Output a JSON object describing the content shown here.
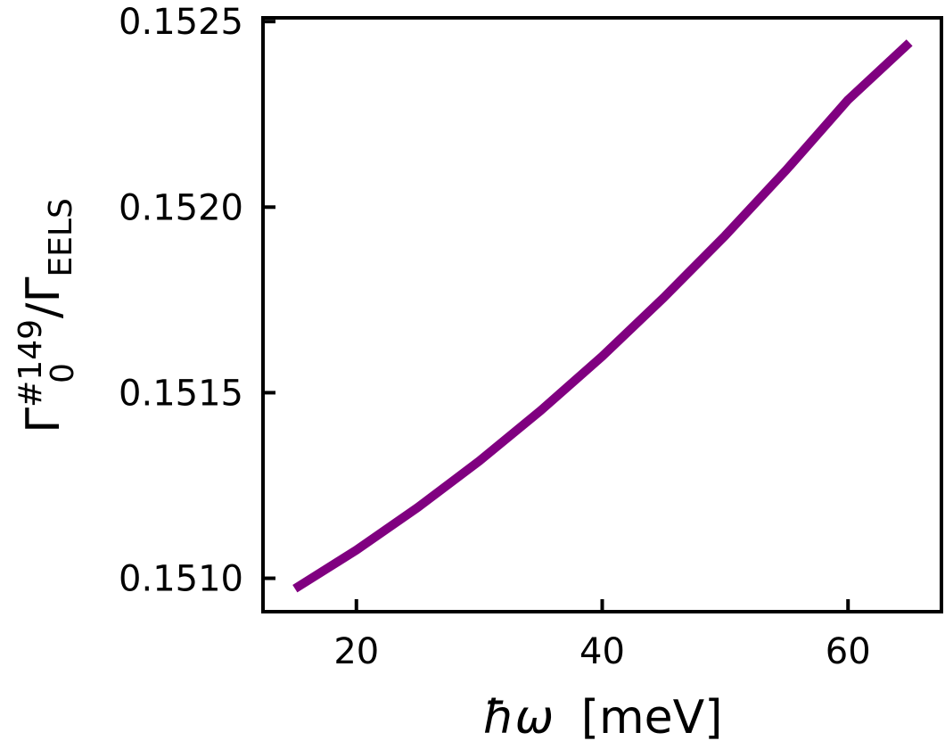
{
  "chart_data": {
    "type": "line",
    "xlabel_symbol": "ħω",
    "xlabel_unit": "[meV]",
    "ylabel_main": "Γ",
    "ylabel_sup": "#149",
    "ylabel_sub": "0",
    "ylabel_slash": "/Γ",
    "ylabel_sub2": "EELS",
    "xlim": [
      12.4,
      67.6
    ],
    "ylim": [
      0.15091,
      0.15251
    ],
    "xticks": [
      20,
      40,
      60
    ],
    "xtick_labels": [
      "20",
      "40",
      "60"
    ],
    "yticks": [
      0.151,
      0.1515,
      0.152,
      0.1525
    ],
    "ytick_labels": [
      "0.1510",
      "0.1515",
      "0.1520",
      "0.1525"
    ],
    "grid": false,
    "legend": "none",
    "series": [
      {
        "color": "#800080",
        "x": [
          15,
          20,
          25,
          30,
          35,
          40,
          45,
          50,
          55,
          60,
          65
        ],
        "y": [
          0.150972,
          0.151076,
          0.151191,
          0.151316,
          0.151452,
          0.151598,
          0.151756,
          0.151923,
          0.152101,
          0.152289,
          0.152443
        ]
      }
    ]
  }
}
